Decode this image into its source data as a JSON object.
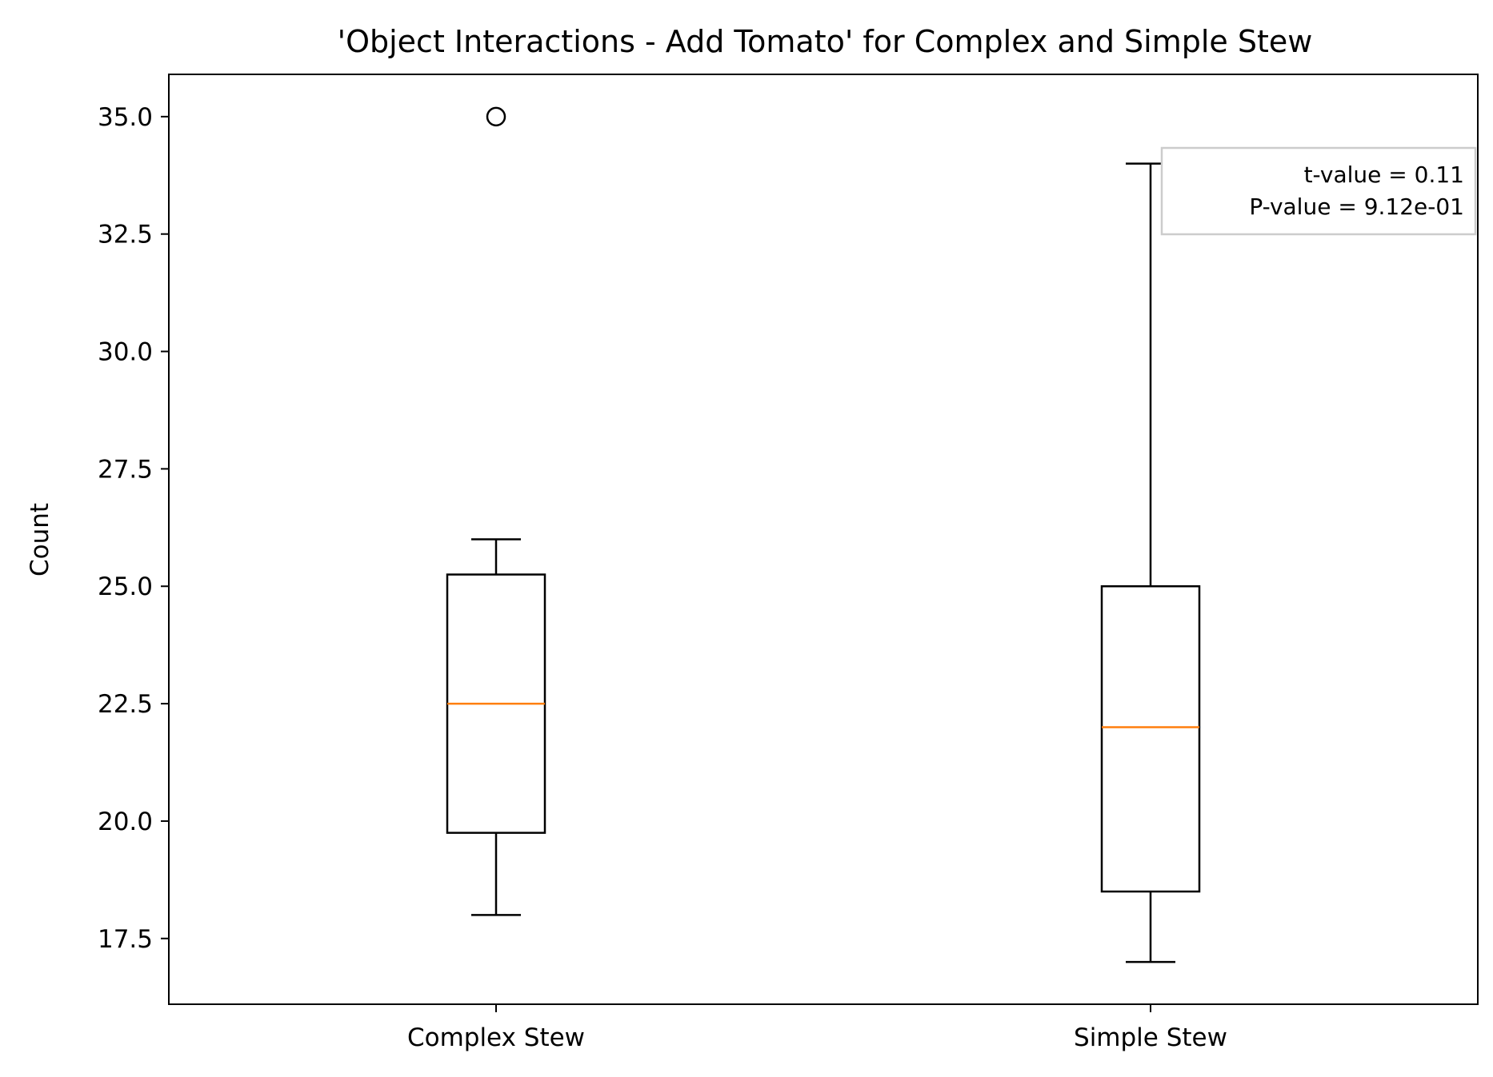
{
  "chart_data": {
    "type": "boxplot",
    "title": "'Object Interactions - Add Tomato' for Complex and Simple Stew",
    "xlabel": "",
    "ylabel": "Count",
    "ylim": [
      16.1,
      35.9
    ],
    "yticks": [
      17.5,
      20.0,
      22.5,
      25.0,
      27.5,
      30.0,
      32.5,
      35.0
    ],
    "ytick_labels": [
      "17.5",
      "20.0",
      "22.5",
      "25.0",
      "27.5",
      "30.0",
      "32.5",
      "35.0"
    ],
    "categories": [
      "Complex Stew",
      "Simple Stew"
    ],
    "grid": false,
    "boxes": [
      {
        "category": "Complex Stew",
        "whisker_low": 18.0,
        "q1": 19.75,
        "median": 22.5,
        "q3": 25.25,
        "whisker_high": 26.0,
        "outliers": [
          35.0
        ]
      },
      {
        "category": "Simple Stew",
        "whisker_low": 17.0,
        "q1": 18.5,
        "median": 22.0,
        "q3": 25.0,
        "whisker_high": 34.0,
        "outliers": []
      }
    ],
    "annotation": {
      "lines": [
        "t-value = 0.11",
        "P-value = 9.12e-01"
      ],
      "placement": "top-right"
    },
    "colors": {
      "box": "#000000",
      "median": "#ff7f0e",
      "annotation_border": "#cccccc"
    }
  }
}
